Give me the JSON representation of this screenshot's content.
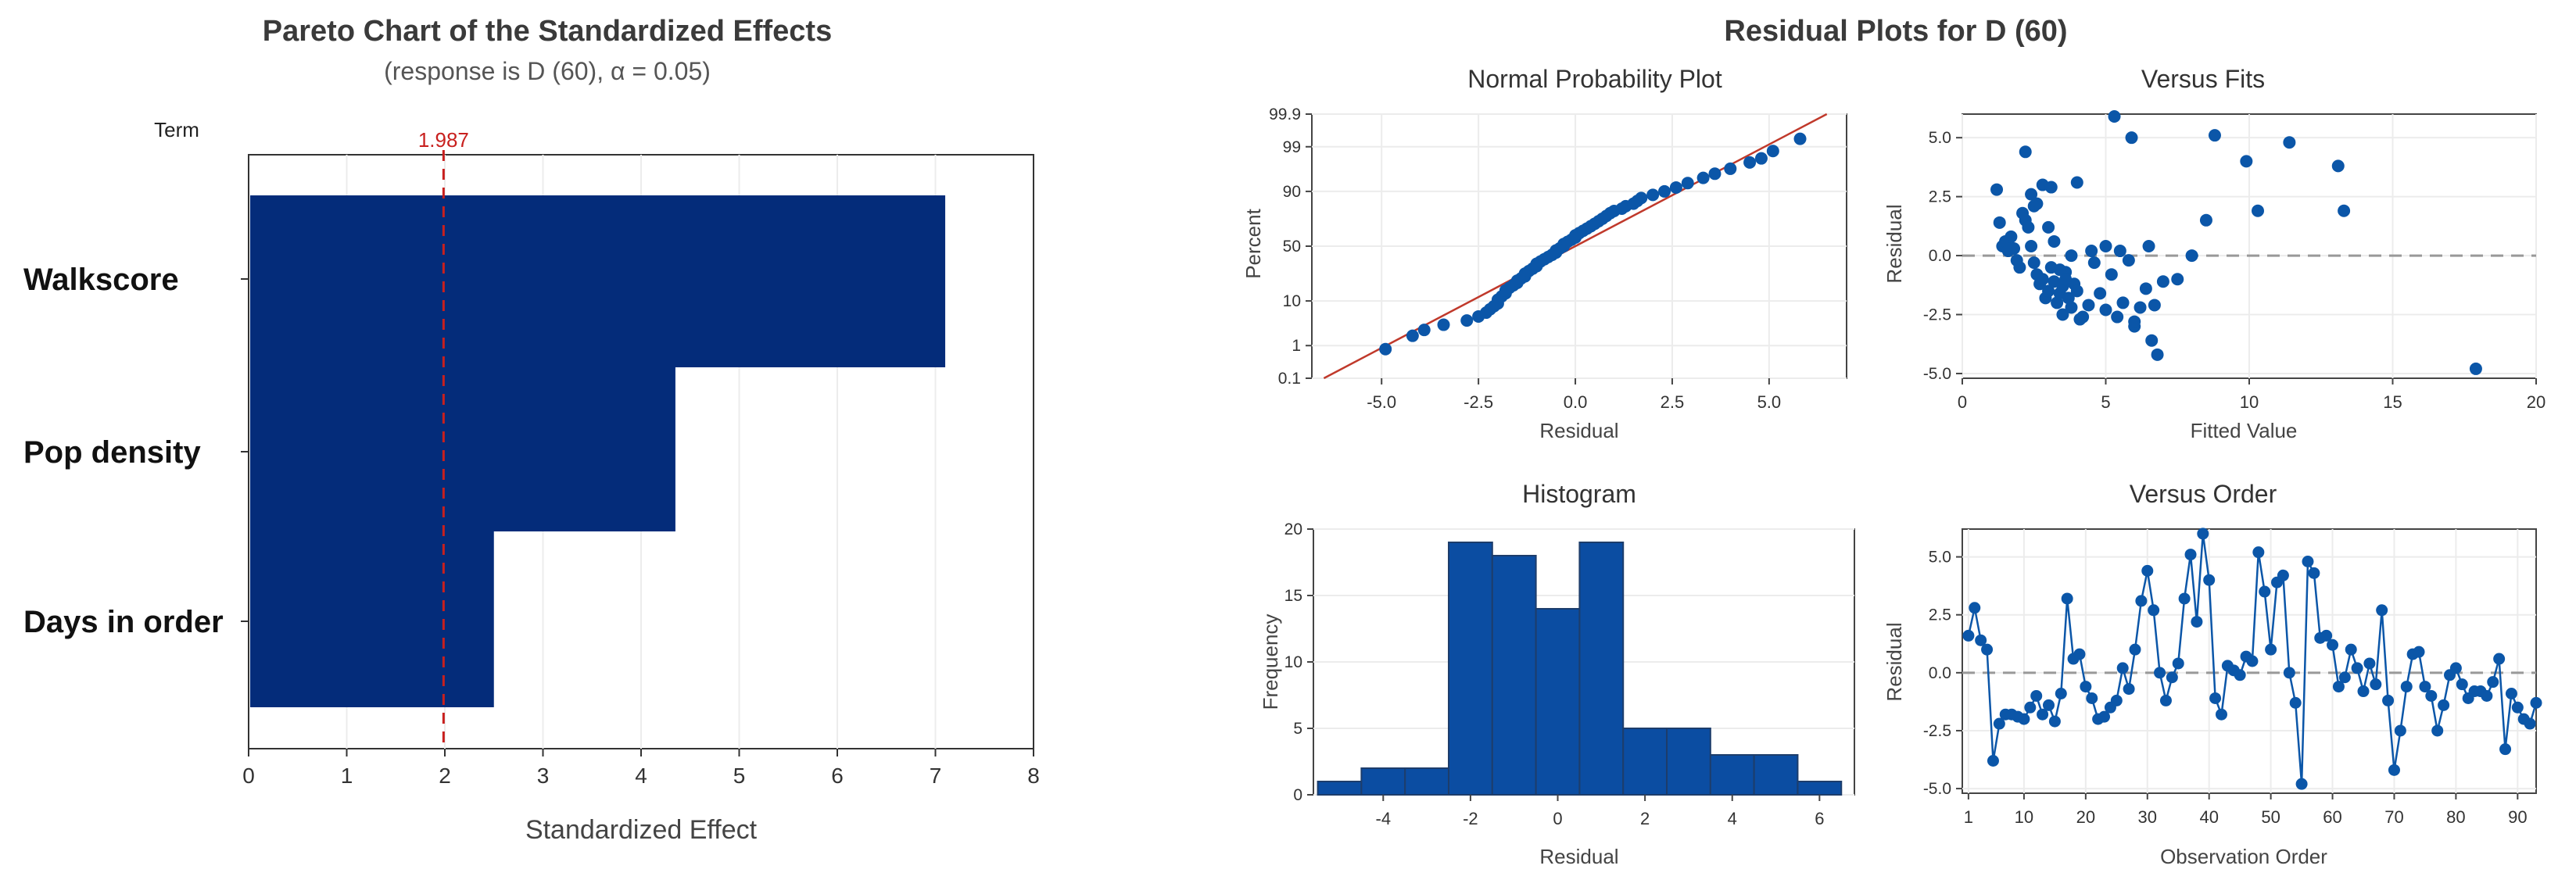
{
  "colors": {
    "bar": "#042C7A",
    "hist_bar": "#0B4DA2",
    "point": "#0B56A8",
    "ref_line": "#C0392B",
    "alpha_line": "#C8201E",
    "zero_line": "#999999",
    "axis": "#333333",
    "grid": "#ECECEC"
  },
  "chart_data": [
    {
      "id": "pareto",
      "type": "bar",
      "orientation": "horizontal",
      "title": "Pareto Chart of the Standardized Effects",
      "subtitle": "(response is D (60), α = 0.05)",
      "term_label": "Term",
      "categories": [
        "Walkscore",
        "Pop density",
        "Days in order"
      ],
      "values": [
        7.1,
        4.35,
        2.5
      ],
      "xlabel": "Standardized Effect",
      "xlim": [
        0,
        8
      ],
      "xticks": [
        "0",
        "1",
        "2",
        "3",
        "4",
        "5",
        "6",
        "7",
        "8"
      ],
      "reference_value": 1.987,
      "reference_label": "1.987"
    },
    {
      "id": "npp",
      "type": "scatter",
      "suptitle": "Residual Plots for D (60)",
      "title": "Normal Probability Plot",
      "xlabel": "Residual",
      "ylabel": "Percent",
      "xlim": [
        -6.8,
        7.0
      ],
      "xticks": [
        "-5.0",
        "-2.5",
        "0.0",
        "2.5",
        "5.0"
      ],
      "yticks": [
        "0.1",
        "1",
        "10",
        "50",
        "90",
        "99",
        "99.9"
      ],
      "fit_line": {
        "mean": 0,
        "sd": 2.1
      },
      "x": [
        -4.9,
        -4.2,
        -3.9,
        -3.4,
        -2.8,
        -2.5,
        -2.3,
        -2.2,
        -2.1,
        -2.0,
        -2.0,
        -1.9,
        -1.8,
        -1.8,
        -1.7,
        -1.6,
        -1.5,
        -1.5,
        -1.4,
        -1.3,
        -1.3,
        -1.2,
        -1.1,
        -1.0,
        -1.0,
        -0.9,
        -0.8,
        -0.7,
        -0.6,
        -0.5,
        -0.5,
        -0.4,
        -0.3,
        -0.3,
        -0.2,
        -0.1,
        0.0,
        0.0,
        0.1,
        0.2,
        0.3,
        0.4,
        0.5,
        0.6,
        0.7,
        0.8,
        0.9,
        1.0,
        1.2,
        1.3,
        1.5,
        1.6,
        1.7,
        2.0,
        2.3,
        2.6,
        2.9,
        3.3,
        3.6,
        4.0,
        4.5,
        4.8,
        5.1,
        5.8
      ],
      "y": [
        0.8,
        1.8,
        2.5,
        3.3,
        4.1,
        5.0,
        6.0,
        7.0,
        8.0,
        9.0,
        10.5,
        12.0,
        13.5,
        15.0,
        16.5,
        18.0,
        19.5,
        21.0,
        22.5,
        24.0,
        26.0,
        28.0,
        30.0,
        32.0,
        34.0,
        36.0,
        38.0,
        40.0,
        42.0,
        44.0,
        46.0,
        48.0,
        50.0,
        52.0,
        54.0,
        56.0,
        58.0,
        60.0,
        62.0,
        64.0,
        66.0,
        68.0,
        70.0,
        72.0,
        74.0,
        76.0,
        78.0,
        79.5,
        81.0,
        82.5,
        84.0,
        85.5,
        87.0,
        88.5,
        90.0,
        91.5,
        93.0,
        94.5,
        95.5,
        96.5,
        97.5,
        98.0,
        98.7,
        99.4
      ]
    },
    {
      "id": "vfits",
      "type": "scatter",
      "title": "Versus Fits",
      "xlabel": "Fitted Value",
      "ylabel": "Residual",
      "xlim": [
        0,
        20
      ],
      "ylim": [
        -5.2,
        6.0
      ],
      "xticks": [
        "0",
        "5",
        "10",
        "15",
        "20"
      ],
      "yticks": [
        "-5.0",
        "-2.5",
        "0.0",
        "2.5",
        "5.0"
      ],
      "x": [
        1.2,
        1.3,
        1.4,
        1.5,
        1.6,
        1.7,
        1.8,
        1.9,
        2.0,
        2.1,
        2.2,
        2.3,
        2.4,
        2.5,
        2.6,
        2.7,
        2.8,
        2.9,
        3.0,
        3.1,
        3.2,
        3.3,
        3.4,
        3.5,
        3.6,
        3.7,
        3.8,
        3.9,
        4.0,
        4.2,
        4.4,
        4.6,
        4.8,
        5.0,
        5.2,
        5.4,
        5.6,
        5.8,
        6.0,
        6.2,
        6.4,
        6.6,
        6.8,
        7.0,
        2.4,
        2.6,
        2.8,
        3.0,
        3.2,
        3.4,
        3.6,
        3.8,
        4.0,
        4.5,
        5.0,
        5.5,
        6.0,
        6.5,
        7.5,
        8.0,
        2.2,
        2.5,
        3.1,
        3.5,
        4.1,
        5.3,
        5.9,
        6.7,
        8.5,
        8.8,
        9.9,
        10.3,
        11.4,
        13.1,
        13.3,
        17.9
      ],
      "y": [
        2.8,
        1.4,
        0.4,
        0.6,
        0.2,
        0.8,
        0.3,
        -0.2,
        -0.5,
        1.8,
        1.5,
        1.2,
        0.4,
        -0.3,
        -0.8,
        -1.2,
        -1.0,
        -1.8,
        -1.5,
        -0.5,
        -1.1,
        -2.0,
        -1.6,
        -1.3,
        -0.7,
        -1.8,
        -2.2,
        -1.2,
        -1.5,
        -2.6,
        -2.1,
        -0.3,
        -1.6,
        -2.3,
        -0.8,
        -2.6,
        -2.0,
        -0.2,
        -3.0,
        -2.2,
        -1.4,
        -3.6,
        -4.2,
        -1.1,
        2.6,
        2.2,
        3.0,
        1.2,
        0.6,
        -0.6,
        -1.0,
        0.0,
        3.1,
        0.2,
        0.4,
        0.2,
        -2.8,
        0.4,
        -1.0,
        0.0,
        4.4,
        2.1,
        2.9,
        -2.5,
        -2.7,
        5.9,
        5.0,
        -2.1,
        1.5,
        5.1,
        4.0,
        1.9,
        4.8,
        3.8,
        1.9,
        -4.8
      ]
    },
    {
      "id": "hist",
      "type": "bar",
      "subtype": "histogram",
      "title": "Histogram",
      "xlabel": "Residual",
      "ylabel": "Frequency",
      "xlim": [
        -5.6,
        6.8
      ],
      "ylim": [
        0,
        20
      ],
      "xticks": [
        "-4",
        "-2",
        "0",
        "2",
        "4",
        "6"
      ],
      "yticks": [
        "0",
        "5",
        "10",
        "15",
        "20"
      ],
      "bin_start": -5.5,
      "bin_width": 1,
      "values": [
        1,
        2,
        2,
        19,
        18,
        14,
        19,
        5,
        5,
        3,
        3,
        1
      ]
    },
    {
      "id": "vorder",
      "type": "line",
      "title": "Versus Order",
      "xlabel": "Observation Order",
      "ylabel": "Residual",
      "xlim": [
        0,
        93
      ],
      "ylim": [
        -5.2,
        6.2
      ],
      "xticks": [
        "1",
        "10",
        "20",
        "30",
        "40",
        "50",
        "60",
        "70",
        "80",
        "90"
      ],
      "yticks": [
        "-5.0",
        "-2.5",
        "0.0",
        "2.5",
        "5.0"
      ],
      "values": [
        1.6,
        2.8,
        1.4,
        1.0,
        -3.8,
        -2.2,
        -1.8,
        -1.8,
        -1.9,
        -2.0,
        -1.5,
        -1.0,
        -1.8,
        -1.4,
        -2.1,
        -0.9,
        3.2,
        0.6,
        0.8,
        -0.6,
        -1.1,
        -2.0,
        -1.9,
        -1.5,
        -1.2,
        0.2,
        -0.7,
        1.0,
        3.1,
        4.4,
        2.7,
        0.0,
        -1.2,
        -0.2,
        0.4,
        3.2,
        5.1,
        2.2,
        6.0,
        4.0,
        -1.1,
        -1.8,
        0.3,
        0.1,
        -0.1,
        0.7,
        0.5,
        5.2,
        3.5,
        1.0,
        3.9,
        4.2,
        0.0,
        -1.3,
        -4.8,
        4.8,
        4.3,
        1.5,
        1.6,
        1.2,
        -0.6,
        -0.2,
        1.0,
        0.2,
        -0.8,
        0.4,
        -0.5,
        2.7,
        -1.2,
        -4.2,
        -2.5,
        -0.6,
        0.8,
        0.9,
        -0.6,
        -1.0,
        -2.5,
        -1.4,
        -0.1,
        0.2,
        -0.5,
        -1.1,
        -0.8,
        -0.8,
        -1.0,
        -0.4,
        0.6,
        -3.3,
        -0.9,
        -1.5,
        -2.0,
        -2.2,
        -1.3
      ]
    }
  ]
}
